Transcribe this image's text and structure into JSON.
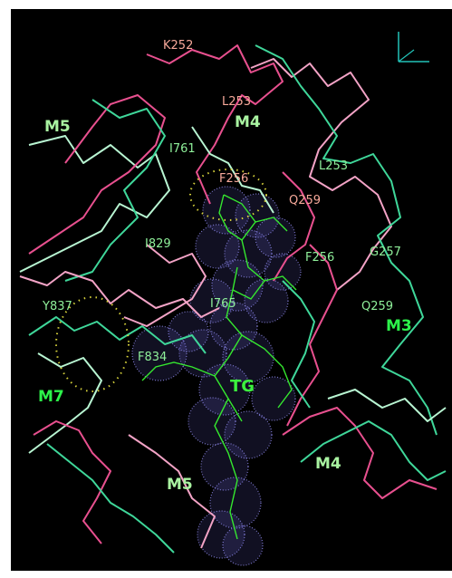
{
  "scene": {
    "background": "#000000",
    "colors": {
      "pink_chain": "#e8508f",
      "light_pink_chain": "#f3a3c6",
      "green_chain": "#3fd79a",
      "mint_chain": "#b8f5d2",
      "ligand_stick": "#35e82f",
      "surface_dots": "#9b95ff",
      "contact_dots": "#d7d23b",
      "axis": "#22c2b8"
    },
    "labels": {
      "k252": "K252",
      "m5_top": "M5",
      "m4_top": "M4",
      "l253_pink": "L253",
      "i761": "I761",
      "l253_green": "L253",
      "f256_pink": "F256",
      "q259_pink": "Q259",
      "i829": "I829",
      "f256_green": "F256",
      "g257": "G257",
      "y837": "Y837",
      "i765": "I765",
      "q259_green": "Q259",
      "m3": "M3",
      "f834": "F834",
      "m7": "M7",
      "tg": "TG",
      "m4_bottom": "M4",
      "m5_bottom": "M5"
    }
  }
}
